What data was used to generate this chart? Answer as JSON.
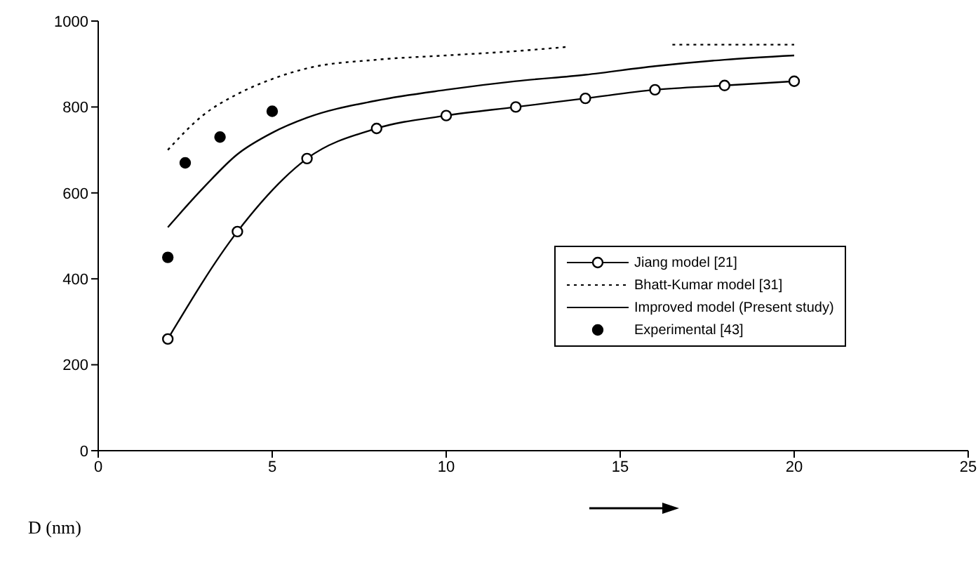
{
  "chart_data": {
    "type": "line",
    "xlabel": "D (nm)",
    "xlim": [
      0,
      25
    ],
    "xticks": [
      0,
      5,
      10,
      15,
      20,
      25
    ],
    "ylim": [
      0,
      1000
    ],
    "yticks": [
      0,
      200,
      400,
      600,
      800,
      1000
    ],
    "grid": false,
    "legend": "right",
    "series": [
      {
        "name": "Jiang model [21]",
        "color": "#000000",
        "marker": "circle",
        "line_style": "solid",
        "x": [
          2,
          4,
          6,
          8,
          10,
          12,
          14,
          16,
          18,
          20
        ],
        "values": [
          260,
          510,
          680,
          750,
          780,
          800,
          820,
          840,
          850,
          860
        ]
      },
      {
        "name": "Bhatt-Kumar model [31]",
        "color": "#000000",
        "marker": "none",
        "line_style": "dotted",
        "x": [
          2,
          3,
          4,
          5,
          6,
          8,
          10,
          12,
          13.5,
          15,
          16.5,
          20
        ],
        "values": [
          700,
          780,
          830,
          865,
          890,
          910,
          920,
          930,
          940,
          null,
          945,
          945
        ]
      },
      {
        "name": "Improved model (Present study)",
        "color": "#000000",
        "marker": "none",
        "line_style": "solid",
        "x": [
          2,
          3,
          4,
          5,
          6,
          8,
          10,
          12,
          14,
          16,
          18,
          20
        ],
        "values": [
          520,
          610,
          690,
          740,
          775,
          815,
          840,
          860,
          875,
          895,
          910,
          920
        ]
      },
      {
        "name": "Experimental [43]",
        "type": "scatter",
        "color": "#000000",
        "marker": "circle",
        "x": [
          2,
          2.5,
          3.5,
          5
        ],
        "values": [
          450,
          670,
          730,
          790
        ]
      }
    ]
  }
}
